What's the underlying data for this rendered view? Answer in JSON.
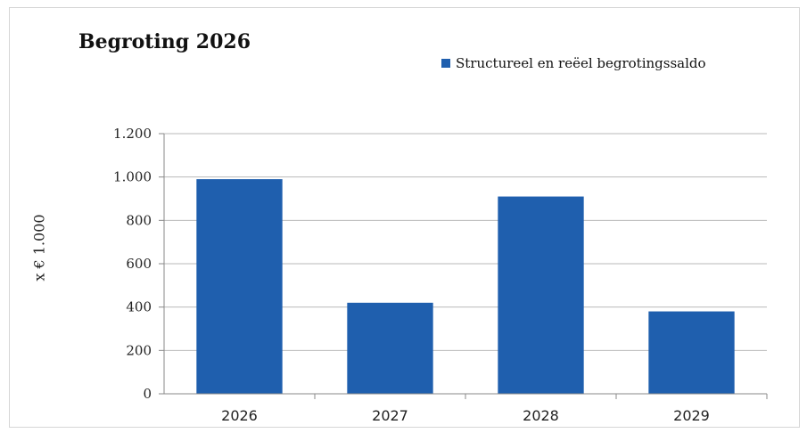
{
  "chart_data": {
    "type": "bar",
    "title": "Begroting 2026",
    "ylabel": "x € 1.000",
    "xlabel": "",
    "categories": [
      "2026",
      "2027",
      "2028",
      "2029"
    ],
    "series": [
      {
        "name": "Structureel en reëel begrotingssaldo",
        "values": [
          990,
          420,
          910,
          380
        ]
      }
    ],
    "ylim": [
      0,
      1200
    ],
    "yticks": [
      0,
      200,
      400,
      600,
      800,
      1000,
      1200
    ],
    "ytick_labels": [
      "0",
      "200",
      "400",
      "600",
      "800",
      "1.000",
      "1.200"
    ],
    "grid": true,
    "legend_position": "top-right",
    "bar_color": "#1f5fae",
    "grid_color": "#b9b9b9"
  }
}
